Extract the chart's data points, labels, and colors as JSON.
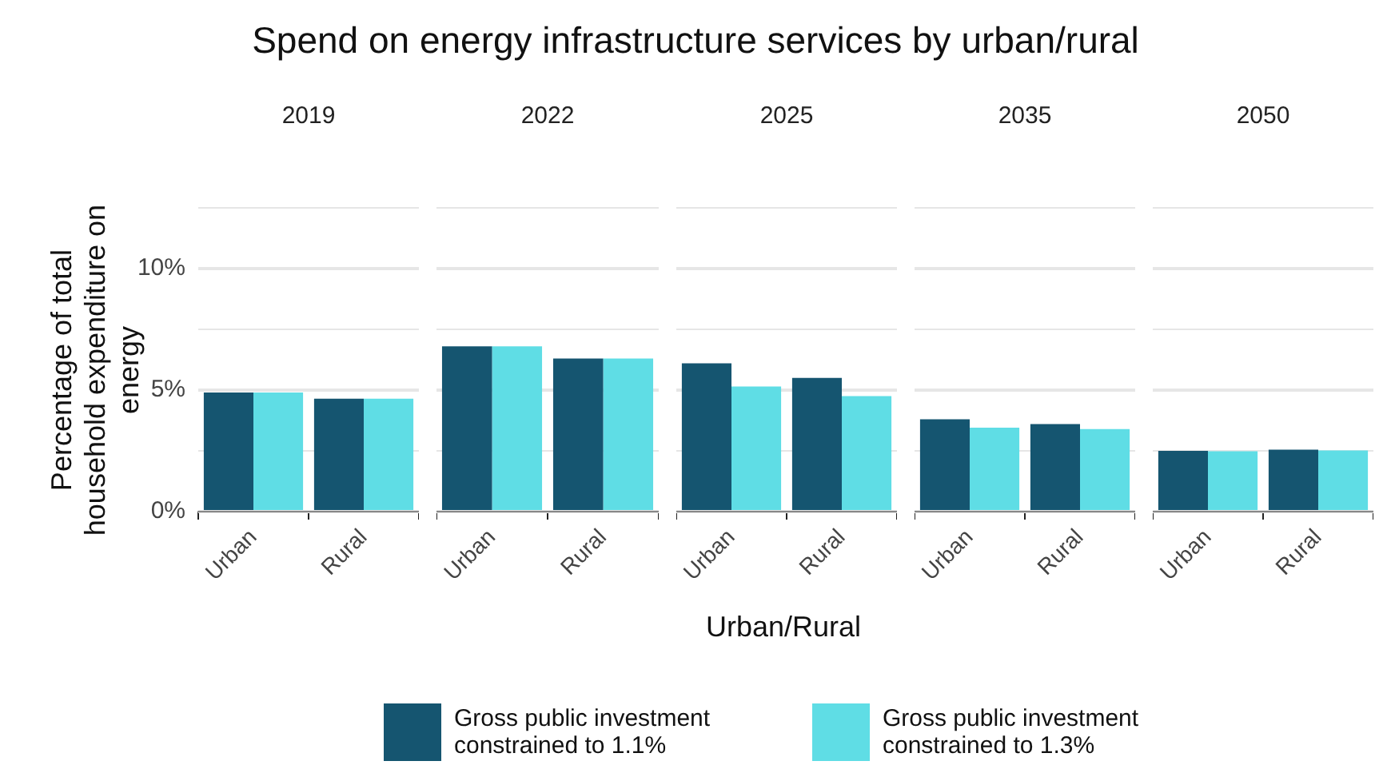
{
  "chart_data": [
    {
      "type": "bar",
      "title": "Spend on energy infrastructure services by urban/rural",
      "subtitle": "2019",
      "ylabel": "Percentage of total household expenditure on energy",
      "categories": [
        "Urban",
        "Rural"
      ],
      "series": [
        {
          "color": "#155570",
          "values": [
            4.9,
            4.65
          ]
        },
        {
          "color": "#5fdde5",
          "values": [
            4.9,
            4.65
          ]
        }
      ],
      "ylim": [
        0,
        12.5
      ],
      "yticks": [
        {
          "value": 0,
          "label": "0%"
        },
        {
          "value": 2.5,
          "label": null
        },
        {
          "value": 5,
          "label": "5%"
        },
        {
          "value": 7.5,
          "label": null
        },
        {
          "value": 10,
          "label": "10%"
        },
        {
          "value": 12.5,
          "label": null
        }
      ],
      "grid": "y"
    },
    {
      "type": "bar",
      "subtitle": "2022",
      "categories": [
        "Urban",
        "Rural"
      ],
      "series": [
        {
          "color": "#155570",
          "values": [
            6.8,
            6.3
          ]
        },
        {
          "color": "#5fdde5",
          "values": [
            6.8,
            6.3
          ]
        }
      ],
      "ylim": [
        0,
        12.5
      ],
      "yticks": [
        0,
        2.5,
        5,
        7.5,
        10,
        12.5
      ],
      "grid": "y",
      "tick_labels": "x"
    },
    {
      "type": "bar",
      "subtitle": "2025",
      "xlabel": "Urban/Rural",
      "categories": [
        "Urban",
        "Rural"
      ],
      "series": [
        {
          "name": "Gross public investment constrained to 1.1%",
          "color": "#155570",
          "values": [
            6.1,
            5.5
          ]
        },
        {
          "name": "Gross public investment constrained to 1.3%",
          "color": "#5fdde5",
          "values": [
            5.15,
            4.75
          ]
        }
      ],
      "ylim": [
        0,
        12.5
      ],
      "yticks": [
        0,
        2.5,
        5,
        7.5,
        10,
        12.5
      ],
      "grid": "y",
      "tick_labels": "x",
      "legend": "bottom"
    },
    {
      "type": "bar",
      "subtitle": "2035",
      "categories": [
        "Urban",
        "Rural"
      ],
      "series": [
        {
          "color": "#155570",
          "values": [
            3.8,
            3.6
          ]
        },
        {
          "color": "#5fdde5",
          "values": [
            3.45,
            3.4
          ]
        }
      ],
      "ylim": [
        0,
        12.5
      ],
      "yticks": [
        0,
        2.5,
        5,
        7.5,
        10,
        12.5
      ],
      "grid": "y",
      "tick_labels": "x"
    },
    {
      "type": "bar",
      "subtitle": "2050",
      "categories": [
        "Urban",
        "Rural"
      ],
      "series": [
        {
          "color": "#155570",
          "values": [
            2.5,
            2.55
          ]
        },
        {
          "color": "#5fdde5",
          "values": [
            2.48,
            2.52
          ]
        }
      ],
      "ylim": [
        0,
        12.5
      ],
      "yticks": [
        0,
        2.5,
        5,
        7.5,
        10,
        12.5
      ],
      "grid": "y",
      "tick_labels": "x"
    }
  ]
}
